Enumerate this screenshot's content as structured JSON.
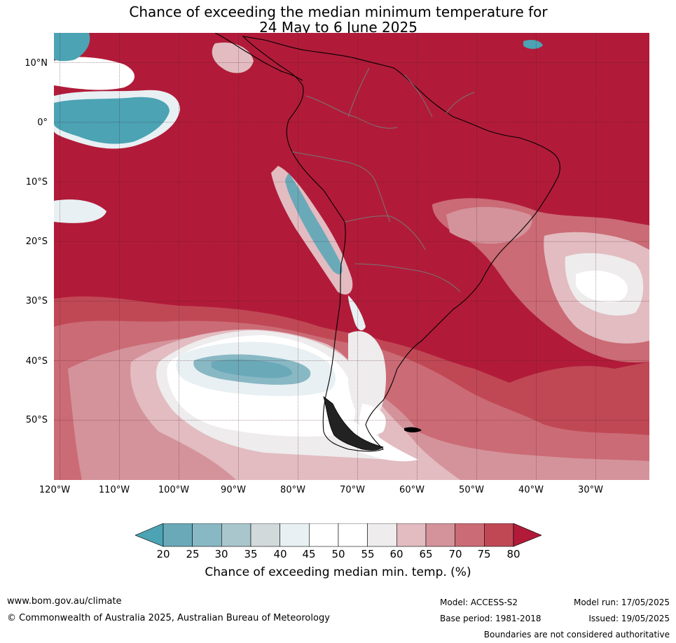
{
  "title": {
    "line1": "Chance of exceeding the median minimum temperature for",
    "line2": "24 May to 6 June 2025"
  },
  "map": {
    "latitude_labels": [
      "10°N",
      "0°",
      "10°S",
      "20°S",
      "30°S",
      "40°S",
      "50°S"
    ],
    "longitude_labels": [
      "120°W",
      "110°W",
      "100°W",
      "90°W",
      "80°W",
      "70°W",
      "60°W",
      "50°W",
      "40°W",
      "30°W"
    ],
    "extent": {
      "lon_min": -121,
      "lon_max": -21,
      "lat_min": -60,
      "lat_max": 15
    },
    "colors": {
      "above_80": "#b11b39",
      "c75_80": "#c04855",
      "c70_75": "#cb6b75",
      "c65_70": "#d4939b",
      "c60_65": "#e2bcc1",
      "c55_60": "#eeeced",
      "c50_55": "#ffffff",
      "c40_45": "#e8f0f3",
      "c35_40": "#d2d9db",
      "c30_35": "#a9c6cc",
      "c25_30": "#88b8c4",
      "c20_25": "#6aa9b8",
      "below_20": "#4ba3b4"
    }
  },
  "colorbar": {
    "ticks": [
      "20",
      "25",
      "30",
      "35",
      "40",
      "45",
      "50",
      "55",
      "60",
      "65",
      "70",
      "75",
      "80"
    ],
    "colors": [
      "#6aa9b8",
      "#88b8c4",
      "#a9c6cc",
      "#d2d9db",
      "#e8f0f3",
      "#ffffff",
      "#ffffff",
      "#eeeced",
      "#e2bcc1",
      "#d4939b",
      "#cb6b75",
      "#c04855"
    ],
    "low_extend_color": "#4ba3b4",
    "high_extend_color": "#b11b39",
    "label": "Chance of exceeding median min. temp. (%)"
  },
  "footer": {
    "website": "www.bom.gov.au/climate",
    "copyright": "© Commonwealth of Australia 2025, Australian Bureau of Meteorology",
    "model": "Model: ACCESS-S2",
    "base_period": "Base period: 1981-2018",
    "model_run": "Model run: 17/05/2025",
    "issued": "Issued: 19/05/2025",
    "boundaries_note": "Boundaries are not considered authoritative"
  }
}
